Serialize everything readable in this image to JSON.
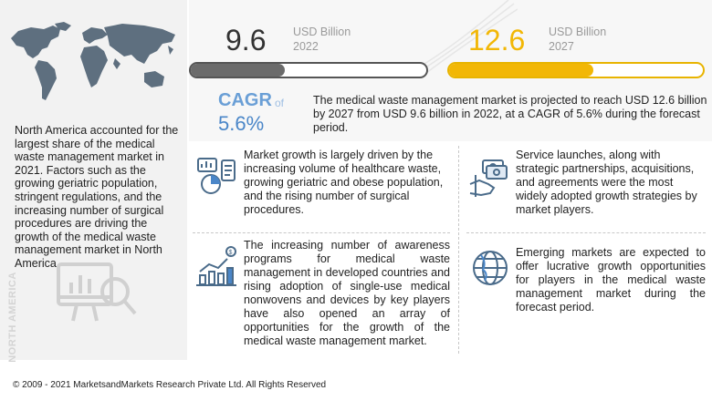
{
  "left": {
    "description": "North America accounted for the largest share of the medical waste management market in 2021. Factors such as the growing geriatric population, stringent regulations, and the increasing number of surgical procedures are driving the growth of the medical waste management market in North America.",
    "region_label": "NORTH AMERICA"
  },
  "metrics": {
    "start_value": "9.6",
    "start_unit": "USD Billion",
    "start_year": "2022",
    "start_bar_level": 0.4,
    "end_value": "12.6",
    "end_unit": "USD Billion",
    "end_year": "2027",
    "end_bar_level": 0.57
  },
  "cagr": {
    "label": "CAGR",
    "of": "of",
    "value": "5.6%"
  },
  "summary": "The medical waste management market is projected to reach USD 12.6 billion by 2027 from USD 9.6 billion in 2022, at a CAGR of 5.6% during the forecast period.",
  "points": [
    {
      "icon": "waste-analysis-icon",
      "text": "Market growth is largely driven by the increasing volume of healthcare waste, growing geriatric and obese population, and the rising number of surgical procedures."
    },
    {
      "icon": "handshake-money-icon",
      "text": "Service launches, along with strategic partnerships, acquisitions, and agreements were the most widely adopted growth strategies by market players."
    },
    {
      "icon": "growth-chart-icon",
      "text": "The increasing number of awareness programs for medical waste management in developed countries and rising adoption of single-use medical nonwovens and devices by key players have also opened an array of opportunities for the growth of the medical waste management market."
    },
    {
      "icon": "globe-icon",
      "text": "Emerging markets are expected to offer lucrative growth opportunities for players in the medical waste management market during the forecast period."
    }
  ],
  "footer": "© 2009 - 2021 MarketsandMarkets Research Private Ltd. All Rights Reserved",
  "colors": {
    "accent_yellow": "#f2b705",
    "accent_blue": "#4a86c8",
    "bar_gray": "#6b6b6b",
    "map_gray": "#5e6f7f"
  }
}
